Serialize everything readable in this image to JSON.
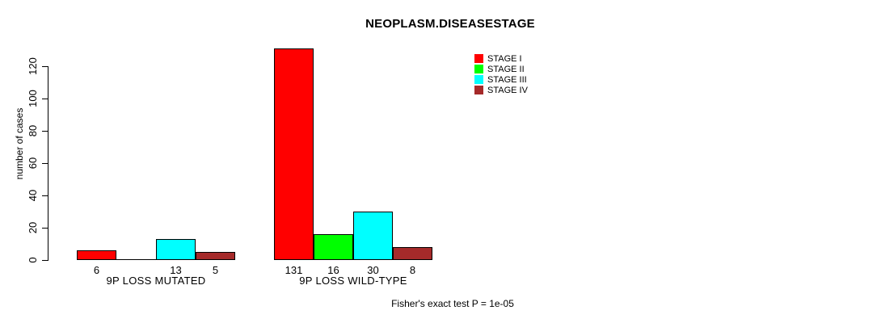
{
  "chart_data": {
    "type": "bar",
    "title": "NEOPLASM.DISEASESTAGE",
    "ylabel": "number of cases",
    "xlabel": "",
    "ylim": [
      0,
      131
    ],
    "yticks": [
      0,
      20,
      40,
      60,
      80,
      100,
      120
    ],
    "grid": false,
    "legend_position": "top-right",
    "categories": [
      "9P LOSS MUTATED",
      "9P LOSS WILD-TYPE"
    ],
    "series": [
      {
        "name": "STAGE I",
        "color": "#FF0000",
        "values": [
          6,
          131
        ]
      },
      {
        "name": "STAGE II",
        "color": "#00FF00",
        "values": [
          0,
          16
        ]
      },
      {
        "name": "STAGE III",
        "color": "#00FFFF",
        "values": [
          13,
          30
        ]
      },
      {
        "name": "STAGE IV",
        "color": "#A52A2A",
        "values": [
          5,
          8
        ]
      }
    ],
    "bar_value_labels": [
      [
        "6",
        "",
        "13",
        "5"
      ],
      [
        "131",
        "16",
        "30",
        "8"
      ]
    ],
    "footnote": "Fisher's exact test P = 1e-05"
  }
}
